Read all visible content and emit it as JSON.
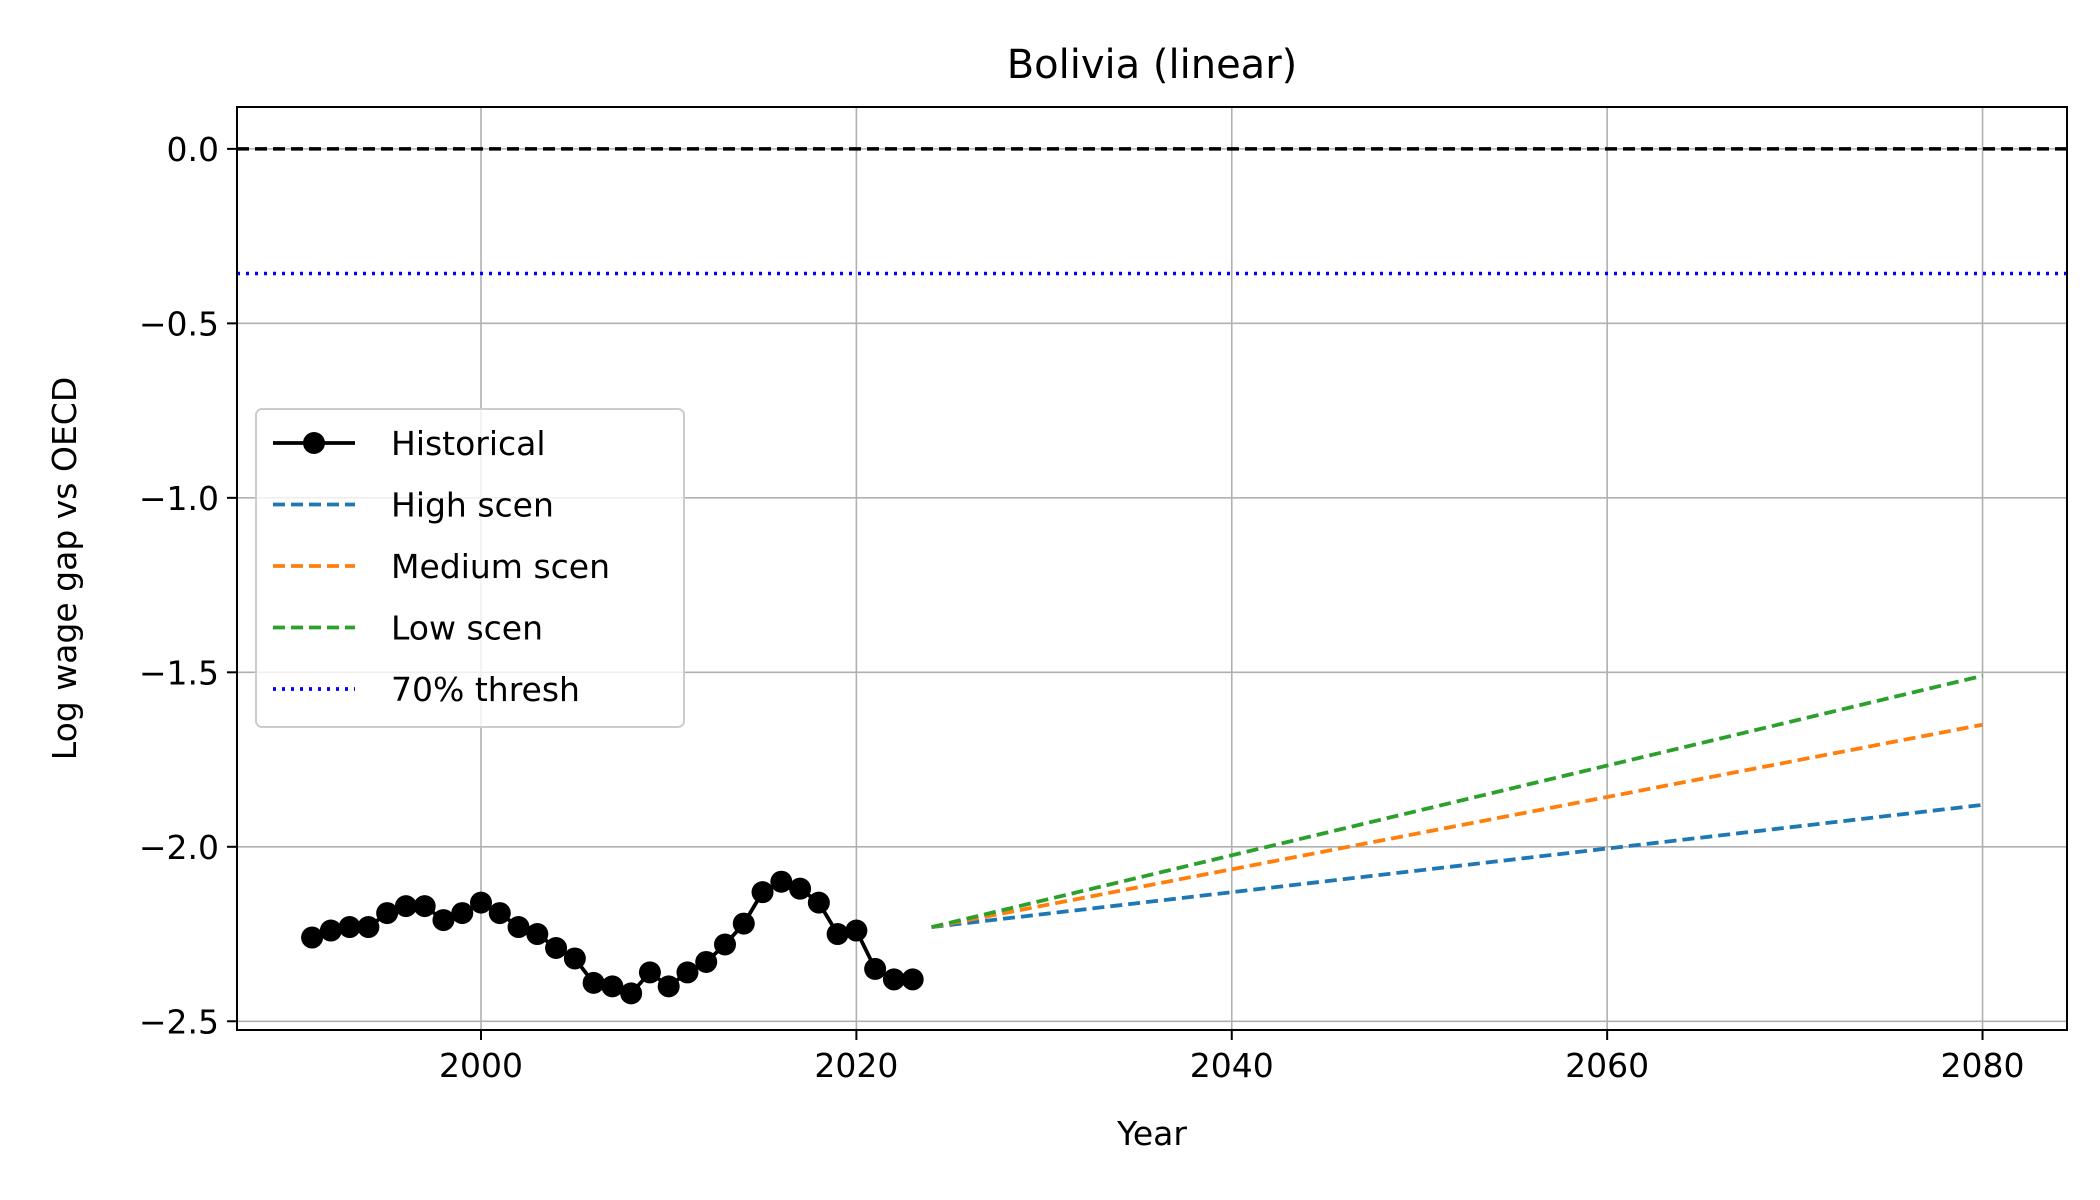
{
  "chart_data": {
    "type": "line",
    "title": "Bolivia (linear)",
    "xlabel": "Year",
    "ylabel": "Log wage gap vs OECD",
    "xlim": [
      1987,
      2084.5
    ],
    "ylim": [
      -2.525,
      0.12
    ],
    "xticks": [
      2000,
      2020,
      2040,
      2060,
      2080
    ],
    "yticks": [
      0.0,
      -0.5,
      -1.0,
      -1.5,
      -2.0,
      -2.5
    ],
    "xtick_labels": [
      "2000",
      "2020",
      "2040",
      "2060",
      "2080"
    ],
    "ytick_labels": [
      "0.0",
      "−0.5",
      "−1.0",
      "−1.5",
      "−2.0",
      "−2.5"
    ],
    "grid": true,
    "legend_position": "center-left",
    "reference_lines": [
      {
        "y": 0.0,
        "color": "#000000",
        "style": "dashed"
      },
      {
        "y": -0.357,
        "color": "#0000ff",
        "style": "dotted",
        "legend": "70% thresh"
      }
    ],
    "series": [
      {
        "name": "Historical",
        "color": "#000000",
        "style": "solid",
        "marker": true,
        "x": [
          1991,
          1992,
          1993,
          1994,
          1995,
          1996,
          1997,
          1998,
          1999,
          2000,
          2001,
          2002,
          2003,
          2004,
          2005,
          2006,
          2007,
          2008,
          2009,
          2010,
          2011,
          2012,
          2013,
          2014,
          2015,
          2016,
          2017,
          2018,
          2019,
          2020,
          2021,
          2022,
          2023
        ],
        "y": [
          -2.26,
          -2.24,
          -2.23,
          -2.23,
          -2.19,
          -2.17,
          -2.17,
          -2.21,
          -2.19,
          -2.16,
          -2.19,
          -2.23,
          -2.25,
          -2.29,
          -2.32,
          -2.39,
          -2.4,
          -2.42,
          -2.36,
          -2.4,
          -2.36,
          -2.33,
          -2.28,
          -2.22,
          -2.13,
          -2.1,
          -2.12,
          -2.16,
          -2.25,
          -2.24,
          -2.35,
          -2.38,
          -2.38
        ]
      },
      {
        "name": "High scen",
        "color": "#1f77b4",
        "style": "dashed",
        "x": [
          2024,
          2080
        ],
        "y": [
          -2.23,
          -1.88
        ]
      },
      {
        "name": "Medium scen",
        "color": "#ff7f0e",
        "style": "dashed",
        "x": [
          2024,
          2080
        ],
        "y": [
          -2.23,
          -1.65
        ]
      },
      {
        "name": "Low scen",
        "color": "#2ca02c",
        "style": "dashed",
        "x": [
          2024,
          2080
        ],
        "y": [
          -2.23,
          -1.51
        ]
      }
    ]
  }
}
